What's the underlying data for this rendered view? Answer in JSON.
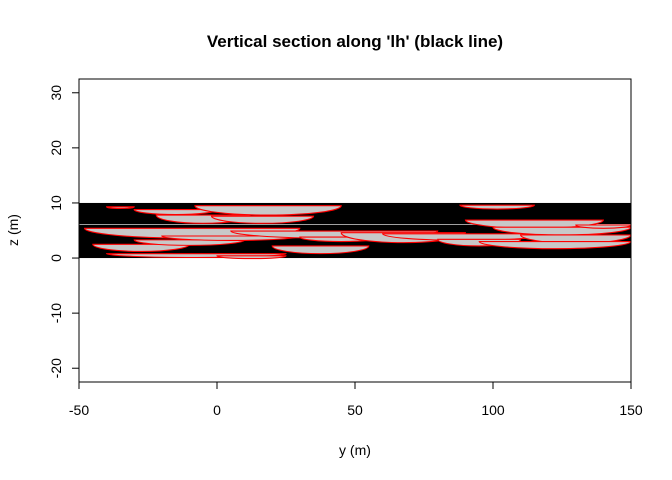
{
  "chart_data": {
    "type": "section",
    "title": "Vertical section along 'lh' (black line)",
    "xlabel": "y (m)",
    "ylabel": "z (m)",
    "xlim": [
      -50,
      150
    ],
    "ylim": [
      -22.5,
      32.5
    ],
    "x_ticks": [
      -50,
      0,
      50,
      100,
      150
    ],
    "y_ticks": [
      -20,
      -10,
      0,
      10,
      20,
      30
    ],
    "grid": false,
    "legend": "none",
    "colors": {
      "background_layer": "#000000",
      "lens_fill": "#c8c8c8",
      "lens_outline": "#ff0000"
    },
    "black_layer": {
      "y_min": -50,
      "y_max": 150,
      "z_min": 0,
      "z_max": 10
    },
    "thin_lines_z": [
      6.1
    ],
    "lenses": [
      {
        "y1": -40,
        "y2": -30,
        "z_top": 9.3,
        "depth": 0.3
      },
      {
        "y1": -30,
        "y2": 0,
        "z_top": 8.8,
        "depth": 0.9
      },
      {
        "y1": -22,
        "y2": 12,
        "z_top": 7.8,
        "depth": 1.5
      },
      {
        "y1": -8,
        "y2": 45,
        "z_top": 9.5,
        "depth": 1.7
      },
      {
        "y1": -2,
        "y2": 35,
        "z_top": 7.6,
        "depth": 1.3
      },
      {
        "y1": -48,
        "y2": 30,
        "z_top": 5.4,
        "depth": 1.8
      },
      {
        "y1": -45,
        "y2": -10,
        "z_top": 2.5,
        "depth": 1.3
      },
      {
        "y1": -30,
        "y2": 10,
        "z_top": 3.3,
        "depth": 1.0
      },
      {
        "y1": -40,
        "y2": 25,
        "z_top": 0.8,
        "depth": 0.7
      },
      {
        "y1": 0,
        "y2": 25,
        "z_top": 0.4,
        "depth": 0.5
      },
      {
        "y1": -20,
        "y2": 30,
        "z_top": 4.0,
        "depth": 0.8
      },
      {
        "y1": 5,
        "y2": 80,
        "z_top": 4.9,
        "depth": 1.3
      },
      {
        "y1": 20,
        "y2": 55,
        "z_top": 2.2,
        "depth": 1.4
      },
      {
        "y1": 30,
        "y2": 60,
        "z_top": 3.8,
        "depth": 0.8
      },
      {
        "y1": 45,
        "y2": 90,
        "z_top": 4.6,
        "depth": 1.8
      },
      {
        "y1": 60,
        "y2": 120,
        "z_top": 4.4,
        "depth": 1.2
      },
      {
        "y1": 80,
        "y2": 110,
        "z_top": 3.4,
        "depth": 1.2
      },
      {
        "y1": 88,
        "y2": 115,
        "z_top": 9.6,
        "depth": 0.7
      },
      {
        "y1": 90,
        "y2": 140,
        "z_top": 6.9,
        "depth": 1.5
      },
      {
        "y1": 100,
        "y2": 150,
        "z_top": 5.6,
        "depth": 1.4
      },
      {
        "y1": 110,
        "y2": 150,
        "z_top": 4.2,
        "depth": 1.5
      },
      {
        "y1": 95,
        "y2": 150,
        "z_top": 3.0,
        "depth": 1.3
      },
      {
        "y1": 130,
        "y2": 150,
        "z_top": 6.0,
        "depth": 0.6
      }
    ]
  }
}
